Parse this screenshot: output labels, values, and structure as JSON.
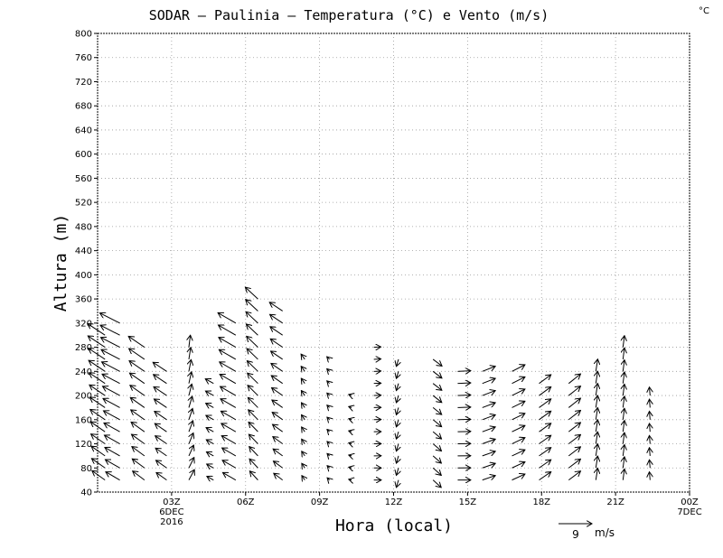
{
  "chart_data": {
    "type": "vector-field",
    "title": "SODAR – Paulinia – Temperatura (°C) e Vento (m/s)",
    "corner_unit": "°C",
    "xlabel": "Hora (local)",
    "ylabel": "Altura (m)",
    "ylim": [
      40,
      800
    ],
    "xlim": [
      0,
      24
    ],
    "yticks": [
      40,
      80,
      120,
      160,
      200,
      240,
      280,
      320,
      360,
      400,
      440,
      480,
      520,
      560,
      600,
      640,
      680,
      720,
      760,
      800
    ],
    "xticks": [
      {
        "x": 3,
        "label": "03Z",
        "sub1": "6DEC",
        "sub2": "2016"
      },
      {
        "x": 6,
        "label": "06Z",
        "sub1": "",
        "sub2": ""
      },
      {
        "x": 9,
        "label": "09Z",
        "sub1": "",
        "sub2": ""
      },
      {
        "x": 12,
        "label": "12Z",
        "sub1": "",
        "sub2": ""
      },
      {
        "x": 15,
        "label": "15Z",
        "sub1": "",
        "sub2": ""
      },
      {
        "x": 18,
        "label": "18Z",
        "sub1": "",
        "sub2": ""
      },
      {
        "x": 21,
        "label": "21Z",
        "sub1": "",
        "sub2": ""
      },
      {
        "x": 24,
        "label": "00Z",
        "sub1": "7DEC",
        "sub2": ""
      }
    ],
    "grid": true,
    "reference_vector": {
      "speed": 9,
      "value_label": "9",
      "unit_label": "m/s"
    },
    "columns": [
      {
        "x": 0.3,
        "top": 300,
        "u": -3.5,
        "v": 2.5,
        "du": -0.1,
        "dv": 0.05
      },
      {
        "x": 0.9,
        "top": 320,
        "u": -3.8,
        "v": 2.2,
        "du": -0.12,
        "dv": 0.04
      },
      {
        "x": 1.9,
        "top": 280,
        "u": -3.2,
        "v": 2.4,
        "du": -0.1,
        "dv": 0.05
      },
      {
        "x": 2.8,
        "top": 240,
        "u": -2.8,
        "v": 2.0,
        "du": -0.1,
        "dv": 0.05
      },
      {
        "x": 3.7,
        "top": 290,
        "u": 1.5,
        "v": 2.8,
        "du": -0.1,
        "dv": 0.04
      },
      {
        "x": 4.7,
        "top": 220,
        "u": -1.8,
        "v": 1.0,
        "du": -0.05,
        "dv": 0.03
      },
      {
        "x": 5.6,
        "top": 320,
        "u": -3.5,
        "v": 2.0,
        "du": -0.1,
        "dv": 0.06
      },
      {
        "x": 6.5,
        "top": 370,
        "u": -2.2,
        "v": 2.4,
        "du": -0.08,
        "dv": 0.05
      },
      {
        "x": 7.5,
        "top": 350,
        "u": -2.4,
        "v": 1.8,
        "du": -0.08,
        "dv": 0.04
      },
      {
        "x": 8.4,
        "top": 270,
        "u": -0.8,
        "v": 1.2,
        "du": -0.02,
        "dv": 0.02
      },
      {
        "x": 9.4,
        "top": 270,
        "u": -0.6,
        "v": 0.6,
        "du": -0.01,
        "dv": 0.01
      },
      {
        "x": 10.3,
        "top": 200,
        "u": -0.8,
        "v": 0.2,
        "du": 0.0,
        "dv": 0.01
      },
      {
        "x": 11.2,
        "top": 290,
        "u": 2.0,
        "v": 0.0,
        "du": -0.01,
        "dv": 0.01
      },
      {
        "x": 12.2,
        "top": 270,
        "u": -0.6,
        "v": -2.0,
        "du": 0.0,
        "dv": 0.01
      },
      {
        "x": 13.6,
        "top": 270,
        "u": 2.2,
        "v": -2.0,
        "du": 0.02,
        "dv": 0.02
      },
      {
        "x": 14.6,
        "top": 240,
        "u": 3.5,
        "v": 0.0,
        "du": 0.0,
        "dv": 0.02
      },
      {
        "x": 15.6,
        "top": 250,
        "u": 3.5,
        "v": 1.2,
        "du": 0.0,
        "dv": 0.02
      },
      {
        "x": 16.8,
        "top": 250,
        "u": 3.5,
        "v": 1.6,
        "du": 0.0,
        "dv": 0.02
      },
      {
        "x": 17.9,
        "top": 230,
        "u": 3.2,
        "v": 2.2,
        "du": 0.0,
        "dv": 0.02
      },
      {
        "x": 19.1,
        "top": 230,
        "u": 3.2,
        "v": 2.4,
        "du": 0.0,
        "dv": 0.02
      },
      {
        "x": 20.2,
        "top": 240,
        "u": 0.5,
        "v": 3.2,
        "du": 0.0,
        "dv": 0.01
      },
      {
        "x": 21.3,
        "top": 280,
        "u": 0.4,
        "v": 3.0,
        "du": 0.0,
        "dv": 0.01
      },
      {
        "x": 22.4,
        "top": 200,
        "u": -0.2,
        "v": 2.2,
        "du": 0.0,
        "dv": 0.01
      }
    ]
  }
}
